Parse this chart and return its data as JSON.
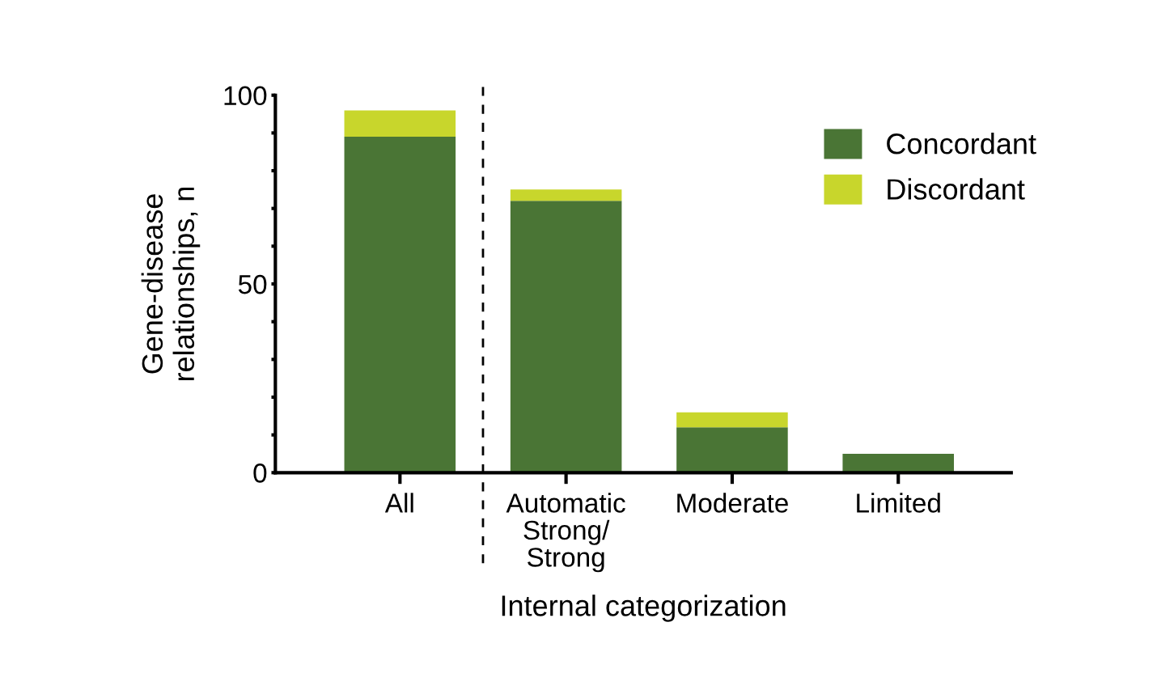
{
  "chart_data": {
    "type": "bar",
    "stacked": true,
    "xlabel": "Internal categorization",
    "ylabel": "Gene-disease\nrelationships, n",
    "categories": [
      "All",
      "Automatic\nStrong/\nStrong",
      "Moderate",
      "Limited"
    ],
    "series": [
      {
        "name": "Concordant",
        "color": "#4a7535",
        "values": [
          89,
          72,
          12,
          5
        ]
      },
      {
        "name": "Discordant",
        "color": "#c8d62c",
        "values": [
          7,
          3,
          4,
          0
        ]
      }
    ],
    "ylim": [
      0,
      100
    ],
    "yticks": [
      0,
      {
        "value": 10,
        "label": null
      },
      {
        "value": 20,
        "label": null
      },
      {
        "value": 30,
        "label": null
      },
      {
        "value": 40,
        "label": null
      },
      50,
      {
        "value": 60,
        "label": null
      },
      {
        "value": 70,
        "label": null
      },
      {
        "value": 80,
        "label": null
      },
      {
        "value": 90,
        "label": null
      },
      100
    ],
    "grid": false,
    "legend": "top right"
  }
}
